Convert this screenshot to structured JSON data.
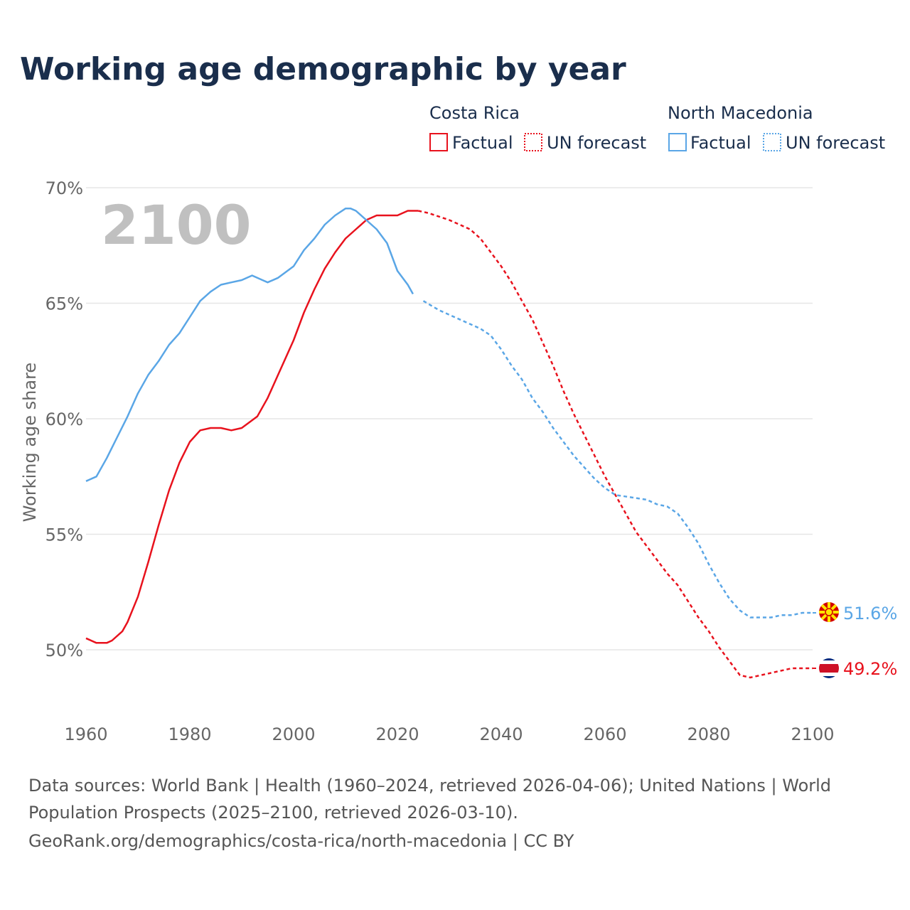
{
  "chart_data": {
    "type": "line",
    "title": "Working age demographic by year",
    "ylabel": "Working age share",
    "xlabel": "",
    "xlim": [
      1960,
      2100
    ],
    "ylim": [
      47.5,
      70
    ],
    "x_ticks": [
      1960,
      1980,
      2000,
      2020,
      2040,
      2060,
      2080,
      2100
    ],
    "y_ticks": [
      50,
      55,
      60,
      65,
      70
    ],
    "y_tick_labels": [
      "50%",
      "55%",
      "60%",
      "65%",
      "70%"
    ],
    "x_tick_labels": [
      "1960",
      "1980",
      "2000",
      "2020",
      "2040",
      "2060",
      "2080",
      "2100"
    ],
    "current_year_label": "2100",
    "factual_end_year": 2024,
    "legend": {
      "groups": [
        {
          "name": "Costa Rica",
          "factual_label": "Factual",
          "forecast_label": "UN forecast"
        },
        {
          "name": "North Macedonia",
          "factual_label": "Factual",
          "forecast_label": "UN forecast"
        }
      ]
    },
    "series": [
      {
        "name": "Costa Rica",
        "color": "#e8121d",
        "end_label": "49.2%",
        "points": [
          [
            1960,
            50.5
          ],
          [
            1962,
            50.3
          ],
          [
            1964,
            50.3
          ],
          [
            1965,
            50.4
          ],
          [
            1967,
            50.8
          ],
          [
            1968,
            51.2
          ],
          [
            1970,
            52.3
          ],
          [
            1972,
            53.8
          ],
          [
            1974,
            55.4
          ],
          [
            1976,
            56.9
          ],
          [
            1978,
            58.1
          ],
          [
            1980,
            59.0
          ],
          [
            1982,
            59.5
          ],
          [
            1984,
            59.6
          ],
          [
            1986,
            59.6
          ],
          [
            1988,
            59.5
          ],
          [
            1990,
            59.6
          ],
          [
            1993,
            60.1
          ],
          [
            1995,
            60.9
          ],
          [
            1997,
            61.9
          ],
          [
            2000,
            63.4
          ],
          [
            2002,
            64.6
          ],
          [
            2004,
            65.6
          ],
          [
            2006,
            66.5
          ],
          [
            2008,
            67.2
          ],
          [
            2010,
            67.8
          ],
          [
            2012,
            68.2
          ],
          [
            2014,
            68.6
          ],
          [
            2016,
            68.8
          ],
          [
            2020,
            68.8
          ],
          [
            2022,
            69.0
          ],
          [
            2024,
            69.0
          ],
          [
            2026,
            68.9
          ],
          [
            2030,
            68.6
          ],
          [
            2034,
            68.2
          ],
          [
            2036,
            67.8
          ],
          [
            2038,
            67.2
          ],
          [
            2040,
            66.6
          ],
          [
            2042,
            65.9
          ],
          [
            2044,
            65.1
          ],
          [
            2046,
            64.3
          ],
          [
            2048,
            63.3
          ],
          [
            2050,
            62.3
          ],
          [
            2052,
            61.2
          ],
          [
            2054,
            60.2
          ],
          [
            2056,
            59.3
          ],
          [
            2058,
            58.4
          ],
          [
            2060,
            57.5
          ],
          [
            2062,
            56.7
          ],
          [
            2064,
            55.9
          ],
          [
            2066,
            55.1
          ],
          [
            2068,
            54.5
          ],
          [
            2070,
            53.9
          ],
          [
            2072,
            53.3
          ],
          [
            2074,
            52.8
          ],
          [
            2076,
            52.1
          ],
          [
            2078,
            51.4
          ],
          [
            2080,
            50.8
          ],
          [
            2082,
            50.1
          ],
          [
            2084,
            49.5
          ],
          [
            2086,
            48.9
          ],
          [
            2088,
            48.8
          ],
          [
            2090,
            48.9
          ],
          [
            2092,
            49.0
          ],
          [
            2094,
            49.1
          ],
          [
            2096,
            49.2
          ],
          [
            2100,
            49.2
          ]
        ]
      },
      {
        "name": "North Macedonia",
        "color": "#5aa6e6",
        "end_label": "51.6%",
        "points": [
          [
            1960,
            57.3
          ],
          [
            1962,
            57.5
          ],
          [
            1964,
            58.3
          ],
          [
            1966,
            59.2
          ],
          [
            1968,
            60.1
          ],
          [
            1970,
            61.1
          ],
          [
            1972,
            61.9
          ],
          [
            1974,
            62.5
          ],
          [
            1976,
            63.2
          ],
          [
            1978,
            63.7
          ],
          [
            1980,
            64.4
          ],
          [
            1982,
            65.1
          ],
          [
            1984,
            65.5
          ],
          [
            1986,
            65.8
          ],
          [
            1988,
            65.9
          ],
          [
            1990,
            66.0
          ],
          [
            1992,
            66.2
          ],
          [
            1994,
            66.0
          ],
          [
            1995,
            65.9
          ],
          [
            1997,
            66.1
          ],
          [
            2000,
            66.6
          ],
          [
            2002,
            67.3
          ],
          [
            2004,
            67.8
          ],
          [
            2006,
            68.4
          ],
          [
            2008,
            68.8
          ],
          [
            2010,
            69.1
          ],
          [
            2011,
            69.1
          ],
          [
            2012,
            69.0
          ],
          [
            2014,
            68.6
          ],
          [
            2016,
            68.2
          ],
          [
            2018,
            67.6
          ],
          [
            2020,
            66.4
          ],
          [
            2022,
            65.8
          ],
          [
            2023,
            65.4
          ],
          [
            2025,
            65.1
          ],
          [
            2028,
            64.7
          ],
          [
            2032,
            64.3
          ],
          [
            2036,
            63.9
          ],
          [
            2038,
            63.6
          ],
          [
            2040,
            63.0
          ],
          [
            2042,
            62.3
          ],
          [
            2044,
            61.7
          ],
          [
            2046,
            60.9
          ],
          [
            2048,
            60.3
          ],
          [
            2050,
            59.6
          ],
          [
            2052,
            59.0
          ],
          [
            2054,
            58.4
          ],
          [
            2056,
            57.9
          ],
          [
            2058,
            57.4
          ],
          [
            2060,
            57.0
          ],
          [
            2062,
            56.7
          ],
          [
            2065,
            56.6
          ],
          [
            2068,
            56.5
          ],
          [
            2070,
            56.3
          ],
          [
            2072,
            56.2
          ],
          [
            2074,
            55.9
          ],
          [
            2076,
            55.3
          ],
          [
            2078,
            54.6
          ],
          [
            2080,
            53.7
          ],
          [
            2082,
            52.9
          ],
          [
            2084,
            52.2
          ],
          [
            2086,
            51.7
          ],
          [
            2088,
            51.4
          ],
          [
            2090,
            51.4
          ],
          [
            2092,
            51.4
          ],
          [
            2094,
            51.5
          ],
          [
            2096,
            51.5
          ],
          [
            2098,
            51.6
          ],
          [
            2100,
            51.6
          ]
        ]
      }
    ]
  },
  "source_lines": [
    "Data sources: World Bank | Health (1960–2024, retrieved 2026-04-06); United Nations | World",
    "Population Prospects (2025–2100, retrieved 2026-03-10).",
    "GeoRank.org/demographics/costa-rica/north-macedonia | CC BY"
  ],
  "colors": {
    "costa_rica": "#e8121d",
    "north_macedonia": "#5aa6e6",
    "title": "#1a2e4c",
    "grid": "#e6e6e6"
  },
  "icons": {
    "costa_rica_flag": "costa-rica-flag-icon",
    "north_macedonia_flag": "north-macedonia-flag-icon"
  }
}
